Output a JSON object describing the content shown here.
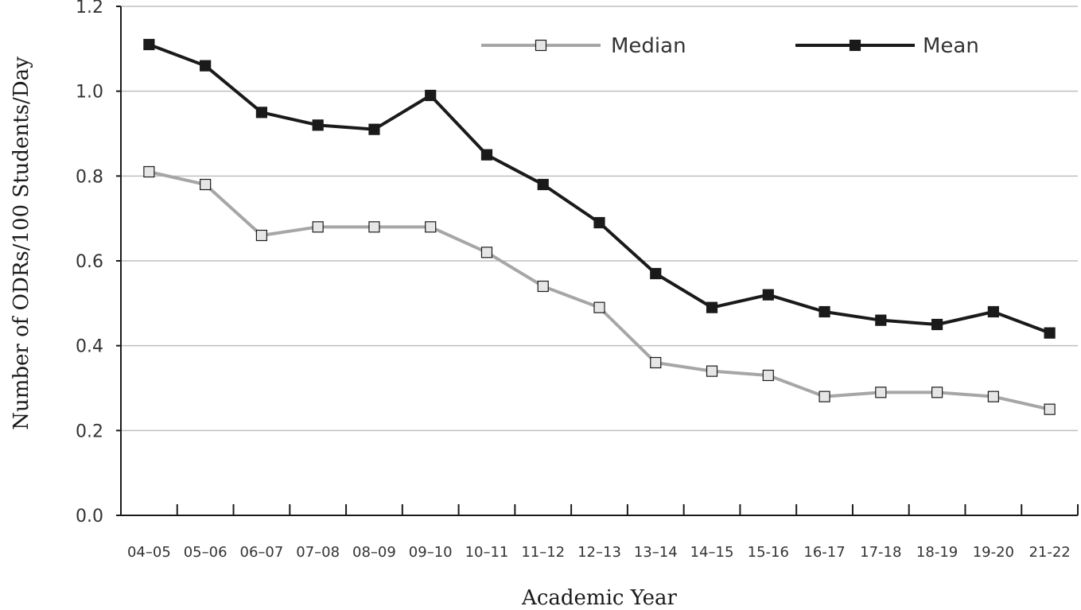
{
  "chart_data": {
    "type": "line",
    "xlabel": "Academic Year",
    "ylabel": "Number of ODRs/100 Students/Day",
    "ylim": [
      0,
      1.2
    ],
    "yticks": [
      "0.0",
      "0.2",
      "0.4",
      "0.6",
      "0.8",
      "1.0",
      "1.2"
    ],
    "grid": "horizontal",
    "legend_position": "top-right",
    "categories": [
      "04–05",
      "05–06",
      "06–07",
      "07–08",
      "08–09",
      "09–10",
      "10–11",
      "11–12",
      "12–13",
      "13–14",
      "14–15",
      "15-16",
      "16-17",
      "17-18",
      "18-19",
      "19-20",
      "21-22"
    ],
    "series": [
      {
        "name": "Median",
        "color": "#a6a6a6",
        "marker_fill": "#e6e6e6",
        "values": [
          0.81,
          0.78,
          0.66,
          0.68,
          0.68,
          0.68,
          0.62,
          0.54,
          0.49,
          0.36,
          0.34,
          0.33,
          0.28,
          0.29,
          0.29,
          0.28,
          0.25
        ]
      },
      {
        "name": "Mean",
        "color": "#1a1a1a",
        "marker_fill": "#1a1a1a",
        "values": [
          1.11,
          1.06,
          0.95,
          0.92,
          0.91,
          0.99,
          0.85,
          0.78,
          0.69,
          0.57,
          0.49,
          0.52,
          0.48,
          0.46,
          0.45,
          0.48,
          0.43
        ]
      }
    ]
  }
}
